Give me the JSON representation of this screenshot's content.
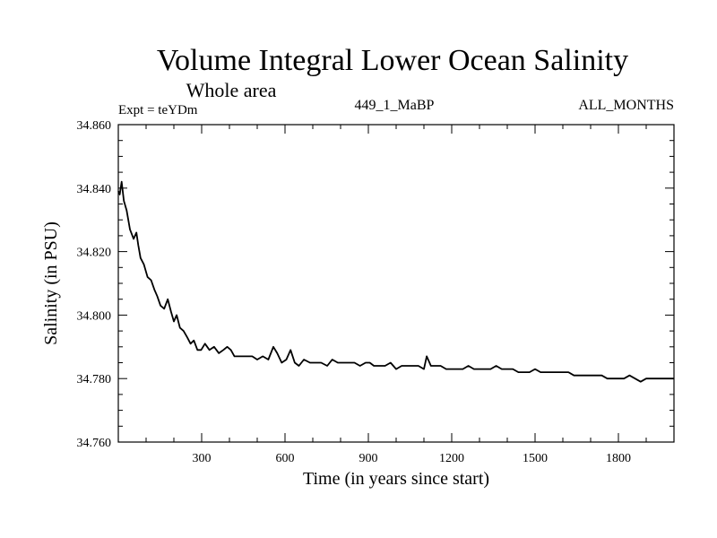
{
  "chart_data": {
    "type": "line",
    "title": "Volume Integral Lower Ocean Salinity",
    "subtitle": "Whole area",
    "annotations": {
      "experiment": "Expt = teYDm",
      "run": "449_1_MaBP",
      "season": "ALL_MONTHS"
    },
    "xlabel": "Time (in years since start)",
    "ylabel": "Salinity (in PSU)",
    "xlim": [
      0,
      2000
    ],
    "ylim": [
      34.76,
      34.86
    ],
    "x_ticks": [
      300,
      600,
      900,
      1200,
      1500,
      1800
    ],
    "x_tick_labels": [
      "300",
      "600",
      "900",
      "1200",
      "1500",
      "1800"
    ],
    "y_ticks": [
      34.76,
      34.78,
      34.8,
      34.82,
      34.84,
      34.86
    ],
    "y_tick_labels": [
      "34.760",
      "34.780",
      "34.800",
      "34.820",
      "34.840",
      "34.860"
    ],
    "grid": false,
    "series": [
      {
        "name": "Lower ocean salinity",
        "color": "#000000",
        "x": [
          0,
          5,
          12,
          20,
          30,
          42,
          55,
          65,
          72,
          80,
          92,
          105,
          118,
          130,
          140,
          152,
          165,
          178,
          190,
          200,
          210,
          222,
          235,
          248,
          260,
          272,
          285,
          298,
          312,
          328,
          345,
          362,
          378,
          392,
          405,
          418,
          432,
          448,
          465,
          482,
          500,
          520,
          540,
          558,
          572,
          588,
          605,
          620,
          635,
          650,
          668,
          690,
          710,
          730,
          752,
          770,
          790,
          810,
          830,
          850,
          870,
          890,
          905,
          920,
          940,
          960,
          980,
          1000,
          1020,
          1040,
          1060,
          1080,
          1100,
          1110,
          1125,
          1140,
          1160,
          1180,
          1200,
          1220,
          1240,
          1260,
          1280,
          1300,
          1320,
          1340,
          1360,
          1380,
          1400,
          1420,
          1440,
          1460,
          1480,
          1500,
          1520,
          1540,
          1560,
          1580,
          1600,
          1620,
          1640,
          1660,
          1680,
          1700,
          1720,
          1740,
          1760,
          1780,
          1800,
          1820,
          1840,
          1860,
          1880,
          1900,
          1920,
          1940,
          1960,
          1980,
          2000
        ],
        "values": [
          34.839,
          34.838,
          34.842,
          34.836,
          34.833,
          34.827,
          34.824,
          34.826,
          34.822,
          34.818,
          34.816,
          34.812,
          34.811,
          34.808,
          34.806,
          34.803,
          34.802,
          34.805,
          34.801,
          34.798,
          34.8,
          34.796,
          34.795,
          34.793,
          34.791,
          34.792,
          34.789,
          34.789,
          34.791,
          34.789,
          34.79,
          34.788,
          34.789,
          34.79,
          34.789,
          34.787,
          34.787,
          34.787,
          34.787,
          34.787,
          34.786,
          34.787,
          34.786,
          34.79,
          34.788,
          34.785,
          34.786,
          34.789,
          34.785,
          34.784,
          34.786,
          34.785,
          34.785,
          34.785,
          34.784,
          34.786,
          34.785,
          34.785,
          34.785,
          34.785,
          34.784,
          34.785,
          34.785,
          34.784,
          34.784,
          34.784,
          34.785,
          34.783,
          34.784,
          34.784,
          34.784,
          34.784,
          34.783,
          34.787,
          34.784,
          34.784,
          34.784,
          34.783,
          34.783,
          34.783,
          34.783,
          34.784,
          34.783,
          34.783,
          34.783,
          34.783,
          34.784,
          34.783,
          34.783,
          34.783,
          34.782,
          34.782,
          34.782,
          34.783,
          34.782,
          34.782,
          34.782,
          34.782,
          34.782,
          34.782,
          34.781,
          34.781,
          34.781,
          34.781,
          34.781,
          34.781,
          34.78,
          34.78,
          34.78,
          34.78,
          34.781,
          34.78,
          34.779,
          34.78,
          34.78,
          34.78,
          34.78,
          34.78,
          34.78
        ]
      }
    ]
  }
}
